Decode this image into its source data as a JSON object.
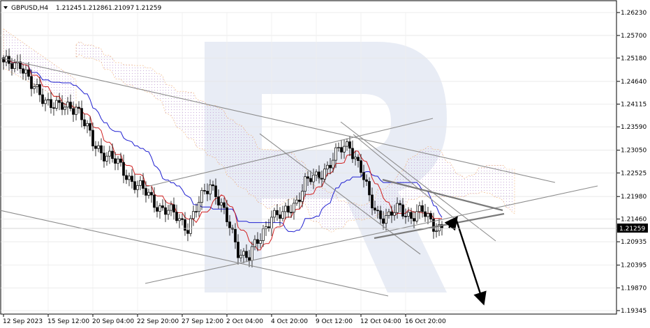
{
  "header": {
    "symbol": "GBPUSD,H4",
    "open": "1.21245",
    "high": "1.21286",
    "low": "1.21097",
    "close": "1.21259"
  },
  "current_price_label": "1.21259",
  "chart_data": {
    "type": "candlestick",
    "symbol": "GBPUSD",
    "timeframe": "H4",
    "ylim": [
      1.19345,
      1.2623
    ],
    "y_ticks": [
      {
        "value": 1.2623,
        "label": "1.26230"
      },
      {
        "value": 1.257,
        "label": "1.25700"
      },
      {
        "value": 1.2518,
        "label": "1.25180"
      },
      {
        "value": 1.2464,
        "label": "1.24640"
      },
      {
        "value": 1.24115,
        "label": "1.24115"
      },
      {
        "value": 1.2359,
        "label": "1.23590"
      },
      {
        "value": 1.2305,
        "label": "1.23050"
      },
      {
        "value": 1.22525,
        "label": "1.22525"
      },
      {
        "value": 1.2198,
        "label": "1.21980"
      },
      {
        "value": 1.2146,
        "label": "1.21460"
      },
      {
        "value": 1.20935,
        "label": "1.20935"
      },
      {
        "value": 1.20395,
        "label": "1.20395"
      },
      {
        "value": 1.1987,
        "label": "1.19870"
      },
      {
        "value": 1.19345,
        "label": "1.19345"
      }
    ],
    "x_ticks": [
      {
        "index": 0,
        "label": "12 Sep 2023"
      },
      {
        "index": 16,
        "label": "15 Sep 12:00"
      },
      {
        "index": 32,
        "label": "20 Sep 04:00"
      },
      {
        "index": 48,
        "label": "22 Sep 20:00"
      },
      {
        "index": 64,
        "label": "27 Sep 12:00"
      },
      {
        "index": 80,
        "label": "2 Oct 04:00"
      },
      {
        "index": 96,
        "label": "4 Oct 20:00"
      },
      {
        "index": 112,
        "label": "9 Oct 12:00"
      },
      {
        "index": 128,
        "label": "12 Oct 04:00"
      },
      {
        "index": 144,
        "label": "16 Oct 20:00"
      }
    ],
    "waypoints": [
      [
        0,
        1.25
      ],
      [
        6,
        1.251
      ],
      [
        10,
        1.245
      ],
      [
        14,
        1.243
      ],
      [
        20,
        1.24
      ],
      [
        26,
        1.241
      ],
      [
        32,
        1.232
      ],
      [
        38,
        1.229
      ],
      [
        44,
        1.225
      ],
      [
        50,
        1.221
      ],
      [
        56,
        1.2175
      ],
      [
        62,
        1.215
      ],
      [
        66,
        1.213
      ],
      [
        70,
        1.218
      ],
      [
        74,
        1.223
      ],
      [
        76,
        1.221
      ],
      [
        80,
        1.214
      ],
      [
        84,
        1.2075
      ],
      [
        88,
        1.206
      ],
      [
        92,
        1.21
      ],
      [
        96,
        1.216
      ],
      [
        100,
        1.215
      ],
      [
        104,
        1.218
      ],
      [
        108,
        1.223
      ],
      [
        112,
        1.224
      ],
      [
        116,
        1.227
      ],
      [
        120,
        1.23
      ],
      [
        124,
        1.232
      ],
      [
        128,
        1.226
      ],
      [
        131,
        1.219
      ],
      [
        134,
        1.216
      ],
      [
        138,
        1.215
      ],
      [
        142,
        1.217
      ],
      [
        146,
        1.2155
      ],
      [
        150,
        1.216
      ],
      [
        154,
        1.2135
      ],
      [
        157,
        1.2126
      ]
    ],
    "annotations": {
      "forecast_arrows": [
        "rebound to 1.2145",
        "decline to 1.1945"
      ]
    }
  }
}
